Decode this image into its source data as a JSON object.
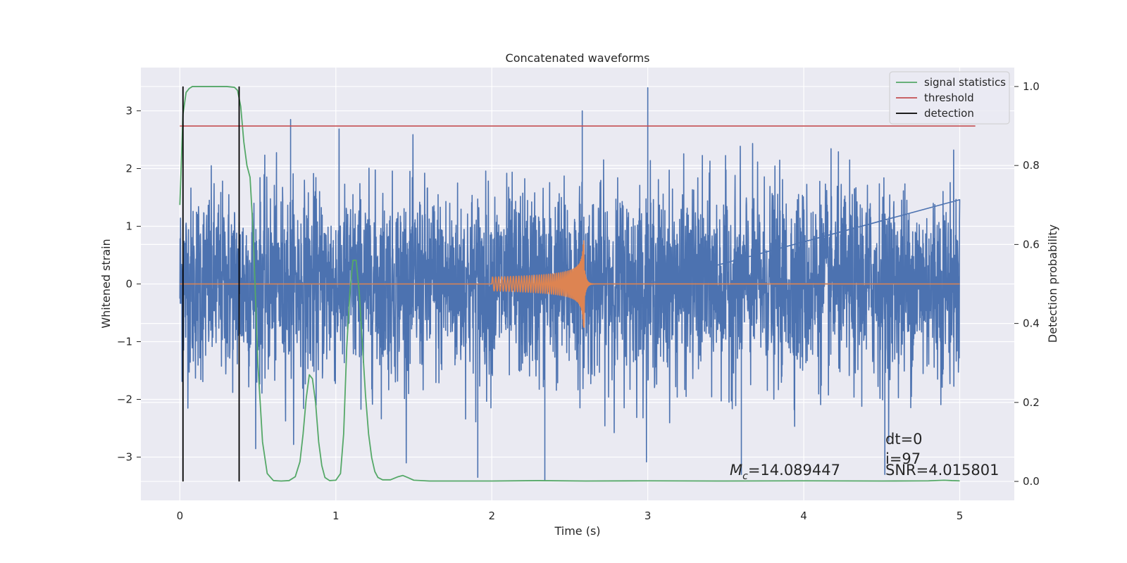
{
  "chart_data": {
    "type": "line",
    "title": "Concatenated waveforms",
    "xlabel": "Time (s)",
    "ylabel": "Whitened strain",
    "ylabel_right": "Detection probability",
    "xlim": [
      -0.25,
      5.35
    ],
    "ylim": [
      -3.75,
      3.75
    ],
    "ylim_right": [
      -0.048,
      1.048
    ],
    "xticks": [
      0,
      1,
      2,
      3,
      4,
      5
    ],
    "xtick_labels": [
      "0",
      "1",
      "2",
      "3",
      "4",
      "5"
    ],
    "yticks": [
      3,
      2,
      1,
      0,
      -1,
      -2,
      -3
    ],
    "ytick_labels": [
      "3",
      "2",
      "1",
      "0",
      "−1",
      "−2",
      "−3"
    ],
    "yticks_right": [
      1.0,
      0.8,
      0.6,
      0.4,
      0.2,
      0.0
    ],
    "ytick_labels_right": [
      "1.0",
      "0.8",
      "0.6",
      "0.4",
      "0.2",
      "0.0"
    ],
    "grid": true,
    "legend_position": "top-right",
    "colors": {
      "strain": "#4c72b0",
      "template": "#dd8452",
      "signal_statistics": "#55a868",
      "threshold": "#c44e52",
      "detection": "#000000",
      "axes_background": "#eaeaf2",
      "grid": "#ffffff"
    },
    "series": [
      {
        "name": "",
        "role": "strain",
        "x_range": [
          0,
          5
        ],
        "y_range_approx": [
          -3.4,
          3.4
        ],
        "peaks": [
          {
            "x": 3.0,
            "y": 3.4
          },
          {
            "x": 2.58,
            "y": 3.0
          },
          {
            "x": 0.71,
            "y": 2.85
          },
          {
            "x": 2.34,
            "y": -3.4
          },
          {
            "x": 1.91,
            "y": -3.35
          },
          {
            "x": 3.6,
            "y": -3.3
          },
          {
            "x": 4.52,
            "y": -3.3
          }
        ]
      },
      {
        "name": "",
        "role": "template",
        "x_range": [
          0,
          5
        ],
        "chirp_start": 2.0,
        "merger_time": 2.59,
        "amplitude_start": 0.12,
        "amplitude_peak": 0.75,
        "amplitude_trough": -0.75
      },
      {
        "name": "signal statistics",
        "axis": "right",
        "x": [
          0,
          0.02,
          0.04,
          0.06,
          0.08,
          0.1,
          0.15,
          0.2,
          0.25,
          0.3,
          0.35,
          0.37,
          0.39,
          0.41,
          0.43,
          0.45,
          0.47,
          0.5,
          0.53,
          0.56,
          0.6,
          0.65,
          0.7,
          0.74,
          0.77,
          0.79,
          0.81,
          0.83,
          0.85,
          0.87,
          0.89,
          0.91,
          0.93,
          0.96,
          1.0,
          1.03,
          1.05,
          1.07,
          1.09,
          1.11,
          1.13,
          1.15,
          1.17,
          1.19,
          1.21,
          1.23,
          1.25,
          1.27,
          1.3,
          1.35,
          1.4,
          1.43,
          1.46,
          1.5,
          1.6,
          2.0,
          2.3,
          2.6,
          3.0,
          3.5,
          4.0,
          4.5,
          4.8,
          4.9,
          4.95,
          5.0
        ],
        "y": [
          0.7,
          0.93,
          0.985,
          0.995,
          1.0,
          1.0,
          1.0,
          1.0,
          1.0,
          1.0,
          0.998,
          0.99,
          0.95,
          0.86,
          0.8,
          0.77,
          0.63,
          0.3,
          0.1,
          0.02,
          0.002,
          0.001,
          0.002,
          0.012,
          0.05,
          0.12,
          0.21,
          0.27,
          0.26,
          0.2,
          0.1,
          0.04,
          0.01,
          0.002,
          0.003,
          0.02,
          0.12,
          0.34,
          0.48,
          0.56,
          0.56,
          0.48,
          0.35,
          0.22,
          0.12,
          0.06,
          0.025,
          0.01,
          0.004,
          0.004,
          0.012,
          0.015,
          0.01,
          0.003,
          0.001,
          0.001,
          0.002,
          0.001,
          0.0015,
          0.001,
          0.0015,
          0.001,
          0.0015,
          0.003,
          0.002,
          0.0015
        ]
      },
      {
        "name": "threshold",
        "axis": "right",
        "x": [
          0,
          5.1
        ],
        "y": [
          0.9,
          0.9
        ]
      },
      {
        "name": "detection",
        "axis": "right",
        "vlines_x": [
          0.02,
          0.38
        ],
        "ymin": 0.0,
        "ymax": 1.0
      }
    ],
    "annotations": {
      "chirp_mass_symbol": "M",
      "chirp_mass_subscript": "c",
      "chirp_mass_value": "=14.089447",
      "dt": "dt=0",
      "index": "i=97",
      "snr": "SNR=4.015801"
    }
  }
}
